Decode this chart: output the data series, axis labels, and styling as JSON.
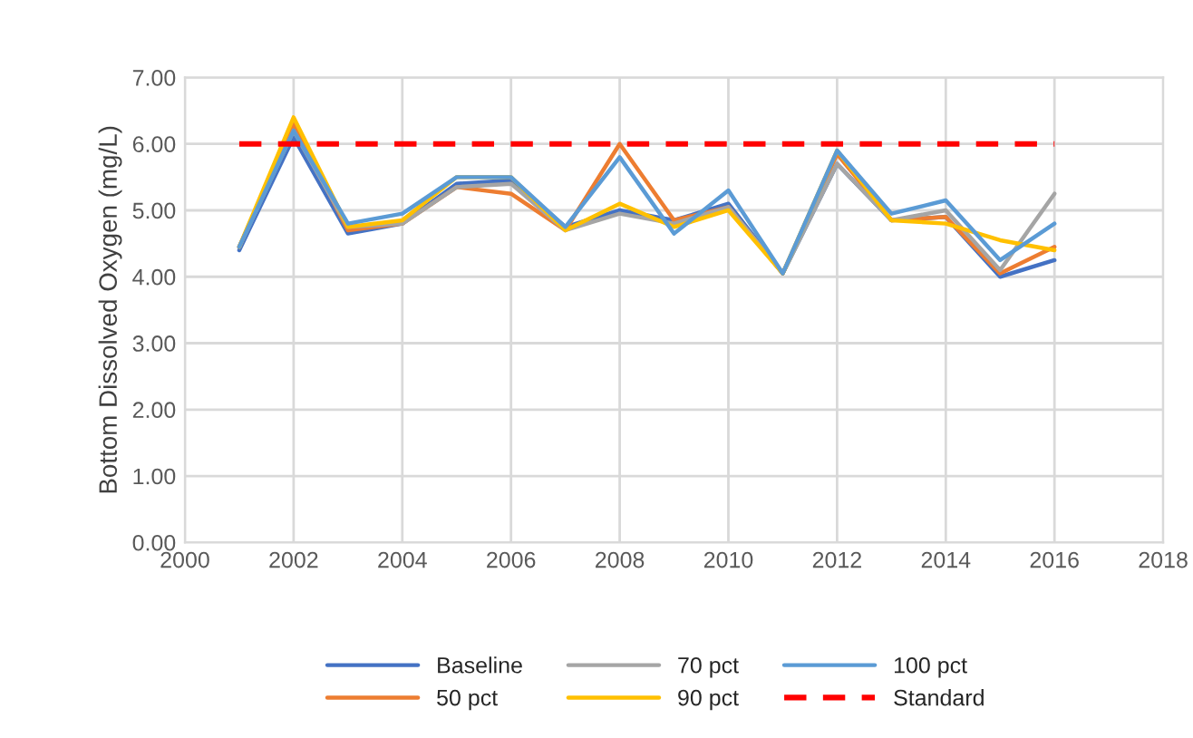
{
  "chart_data": {
    "type": "line",
    "ylabel": "Bottom Dissolved Oxygen (mg/L)",
    "x": [
      2001,
      2002,
      2003,
      2004,
      2005,
      2006,
      2007,
      2008,
      2009,
      2010,
      2011,
      2012,
      2013,
      2014,
      2015,
      2016
    ],
    "series": [
      {
        "name": "Baseline",
        "color": "#4472c4",
        "values": [
          4.4,
          6.1,
          4.65,
          4.8,
          5.4,
          5.45,
          4.75,
          5.0,
          4.85,
          5.1,
          4.05,
          5.7,
          4.85,
          4.9,
          4.0,
          4.25
        ]
      },
      {
        "name": "50 pct",
        "color": "#ed7d31",
        "values": [
          4.45,
          6.3,
          4.7,
          4.8,
          5.35,
          5.25,
          4.7,
          6.0,
          4.85,
          5.05,
          4.05,
          5.85,
          4.85,
          4.9,
          4.05,
          4.45
        ]
      },
      {
        "name": "70 pct",
        "color": "#a5a5a5",
        "values": [
          4.45,
          6.2,
          4.75,
          4.8,
          5.35,
          5.4,
          4.7,
          4.95,
          4.8,
          5.05,
          4.05,
          5.7,
          4.85,
          5.0,
          4.1,
          5.25
        ]
      },
      {
        "name": "90 pct",
        "color": "#ffc000",
        "values": [
          4.45,
          6.4,
          4.75,
          4.85,
          5.5,
          5.5,
          4.7,
          5.1,
          4.75,
          5.0,
          4.05,
          5.9,
          4.85,
          4.8,
          4.55,
          4.4
        ]
      },
      {
        "name": "100 pct",
        "color": "#5b9bd5",
        "values": [
          4.45,
          6.2,
          4.8,
          4.95,
          5.5,
          5.5,
          4.75,
          5.8,
          4.65,
          5.3,
          4.05,
          5.9,
          4.95,
          5.15,
          4.25,
          4.8
        ]
      },
      {
        "name": "Standard",
        "color": "#ff0000",
        "line_style": "dashed",
        "values": [
          6,
          6,
          6,
          6,
          6,
          6,
          6,
          6,
          6,
          6,
          6,
          6,
          6,
          6,
          6,
          6
        ]
      }
    ],
    "xlim": [
      2000,
      2018
    ],
    "xticks": [
      2000,
      2002,
      2004,
      2006,
      2008,
      2010,
      2012,
      2014,
      2016,
      2018
    ],
    "ylim": [
      0,
      7
    ],
    "yticks": [
      {
        "value": 0,
        "label": "0.00"
      },
      {
        "value": 1,
        "label": "1.00"
      },
      {
        "value": 2,
        "label": "2.00"
      },
      {
        "value": 3,
        "label": "3.00"
      },
      {
        "value": 4,
        "label": "4.00"
      },
      {
        "value": 5,
        "label": "5.00"
      },
      {
        "value": 6,
        "label": "6.00"
      },
      {
        "value": 7,
        "label": "7.00"
      }
    ],
    "grid": true,
    "legend": "bottom",
    "marker": "none",
    "line_style": "solid"
  }
}
